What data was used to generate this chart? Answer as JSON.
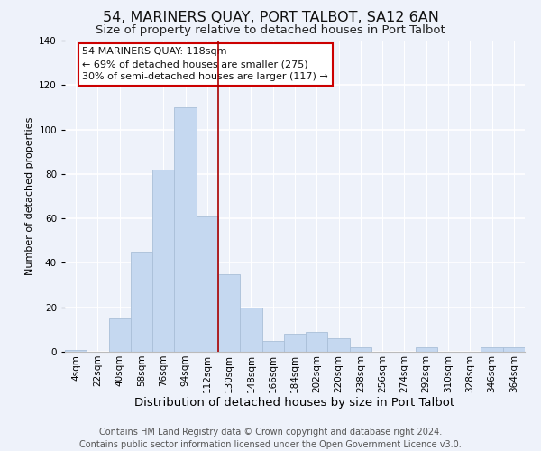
{
  "title": "54, MARINERS QUAY, PORT TALBOT, SA12 6AN",
  "subtitle": "Size of property relative to detached houses in Port Talbot",
  "xlabel": "Distribution of detached houses by size in Port Talbot",
  "ylabel": "Number of detached properties",
  "bin_labels": [
    "4sqm",
    "22sqm",
    "40sqm",
    "58sqm",
    "76sqm",
    "94sqm",
    "112sqm",
    "130sqm",
    "148sqm",
    "166sqm",
    "184sqm",
    "202sqm",
    "220sqm",
    "238sqm",
    "256sqm",
    "274sqm",
    "292sqm",
    "310sqm",
    "328sqm",
    "346sqm",
    "364sqm"
  ],
  "bar_heights": [
    1,
    0,
    15,
    45,
    82,
    110,
    61,
    35,
    20,
    5,
    8,
    9,
    6,
    2,
    0,
    0,
    2,
    0,
    0,
    2,
    2
  ],
  "bar_color": "#c5d8f0",
  "bar_edge_color": "#aabfd8",
  "vline_x": 6,
  "vline_color": "#aa0000",
  "annotation_title": "54 MARINERS QUAY: 118sqm",
  "annotation_line1": "← 69% of detached houses are smaller (275)",
  "annotation_line2": "30% of semi-detached houses are larger (117) →",
  "annotation_box_color": "#ffffff",
  "annotation_box_edge": "#cc0000",
  "footer_line1": "Contains HM Land Registry data © Crown copyright and database right 2024.",
  "footer_line2": "Contains public sector information licensed under the Open Government Licence v3.0.",
  "ylim": [
    0,
    140
  ],
  "title_fontsize": 11.5,
  "subtitle_fontsize": 9.5,
  "xlabel_fontsize": 9.5,
  "ylabel_fontsize": 8,
  "tick_fontsize": 7.5,
  "footer_fontsize": 7,
  "background_color": "#eef2fa"
}
